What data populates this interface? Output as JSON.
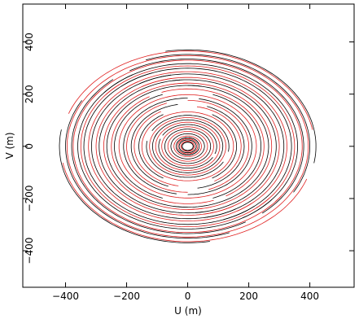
{
  "chart_data": {
    "type": "scatter",
    "title": "",
    "xlabel": "U (m)",
    "ylabel": "V (m)",
    "xlim": [
      -540,
      545
    ],
    "ylim": [
      -540,
      545
    ],
    "xticks": [
      -400,
      -200,
      0,
      200,
      400
    ],
    "yticks": [
      -400,
      -200,
      0,
      200,
      400
    ],
    "xtick_labels": [
      "−400",
      "−200",
      "0",
      "200",
      "400"
    ],
    "ytick_labels": [
      "−400",
      "−200",
      "0",
      "200",
      "400"
    ],
    "grid": false,
    "series": [
      {
        "color": "#000000",
        "arcs": [
          {
            "r": 18,
            "a1": 0,
            "a2": 360
          },
          {
            "r": 28,
            "a1": 0,
            "a2": 360
          },
          {
            "r": 38,
            "a1": 10,
            "a2": 340
          },
          {
            "r": 55,
            "a1": 150,
            "a2": 330
          },
          {
            "r": 75,
            "a1": 140,
            "a2": 320
          },
          {
            "r": 95,
            "a1": 160,
            "a2": 330
          },
          {
            "r": 115,
            "a1": 150,
            "a2": 340
          },
          {
            "r": 135,
            "a1": 170,
            "a2": 330
          },
          {
            "r": 160,
            "a1": 120,
            "a2": 240
          },
          {
            "r": 185,
            "a1": 100,
            "a2": 250
          },
          {
            "r": 210,
            "a1": 90,
            "a2": 260
          },
          {
            "r": 240,
            "a1": 110,
            "a2": 250
          },
          {
            "r": 265,
            "a1": 80,
            "a2": 270
          },
          {
            "r": 290,
            "a1": 95,
            "a2": 280
          },
          {
            "r": 315,
            "a1": 100,
            "a2": 300
          },
          {
            "r": 340,
            "a1": 110,
            "a2": 310
          },
          {
            "r": 360,
            "a1": 120,
            "a2": 320
          },
          {
            "r": 380,
            "a1": 130,
            "a2": 300
          },
          {
            "r": 400,
            "a1": 150,
            "a2": 290
          },
          {
            "r": 420,
            "a1": 170,
            "a2": 280
          }
        ]
      },
      {
        "color": "#e02020",
        "arcs": [
          {
            "r": 22,
            "a1": 0,
            "a2": 360
          },
          {
            "r": 33,
            "a1": 20,
            "a2": 350
          },
          {
            "r": 45,
            "a1": -20,
            "a2": 170
          },
          {
            "r": 65,
            "a1": -30,
            "a2": 150
          },
          {
            "r": 85,
            "a1": -20,
            "a2": 160
          },
          {
            "r": 105,
            "a1": -10,
            "a2": 170
          },
          {
            "r": 125,
            "a1": -30,
            "a2": 150
          },
          {
            "r": 150,
            "a1": 10,
            "a2": 190
          },
          {
            "r": 175,
            "a1": -60,
            "a2": 80
          },
          {
            "r": 200,
            "a1": -70,
            "a2": 90
          },
          {
            "r": 225,
            "a1": -80,
            "a2": 100
          },
          {
            "r": 250,
            "a1": -60,
            "a2": 110
          },
          {
            "r": 275,
            "a1": -90,
            "a2": 100
          },
          {
            "r": 300,
            "a1": -80,
            "a2": 120
          },
          {
            "r": 325,
            "a1": -60,
            "a2": 130
          },
          {
            "r": 350,
            "a1": -50,
            "a2": 140
          },
          {
            "r": 375,
            "a1": -40,
            "a2": 145
          },
          {
            "r": 395,
            "a1": -30,
            "a2": 150
          },
          {
            "r": 415,
            "a1": 10,
            "a2": 160
          }
        ]
      }
    ]
  }
}
